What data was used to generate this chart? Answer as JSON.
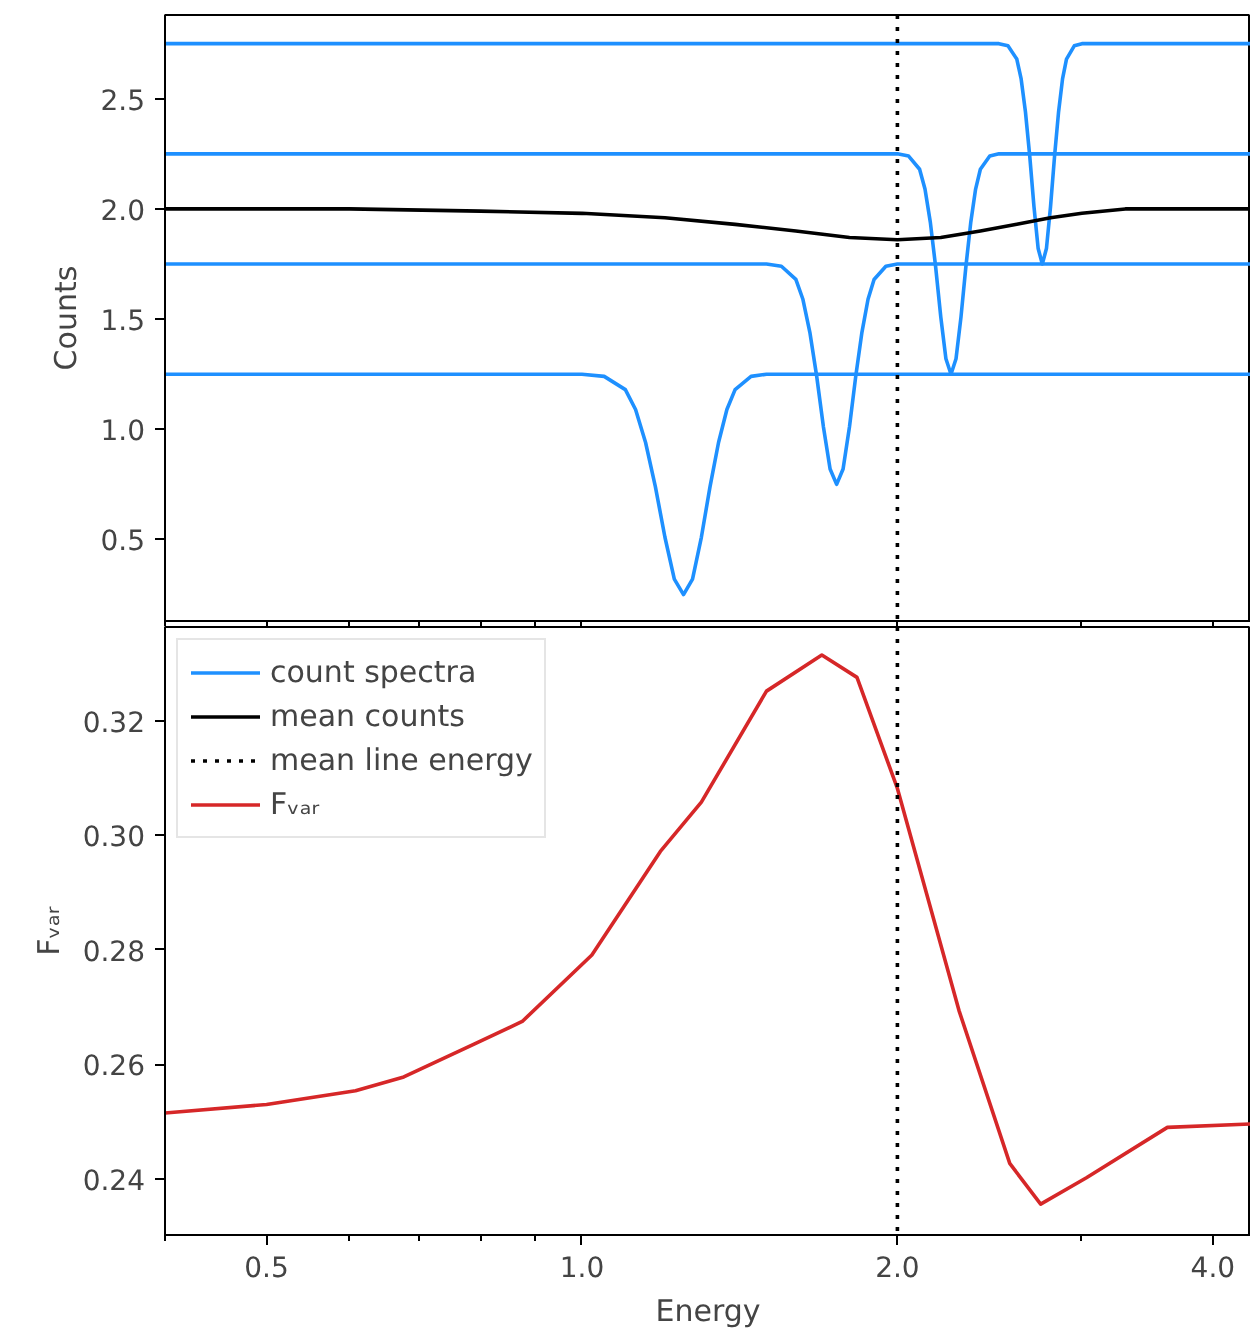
{
  "chart_data": [
    {
      "type": "line",
      "ylabel": "Counts",
      "log": "x",
      "tick_labels": "y",
      "legend": "bottom",
      "xlim": [
        0.4,
        4.35
      ],
      "ylim": [
        0.13,
        2.88
      ],
      "xticks": [
        {
          "value": 0.4,
          "label": null
        },
        {
          "value": 0.5,
          "label": null
        },
        {
          "value": 0.6,
          "label": null
        },
        {
          "value": 0.7,
          "label": null
        },
        {
          "value": 0.8,
          "label": null
        },
        {
          "value": 0.9,
          "label": null
        },
        {
          "value": 1,
          "label": null
        },
        {
          "value": 2,
          "label": null
        },
        {
          "value": 3,
          "label": null
        },
        {
          "value": 4,
          "label": null
        }
      ],
      "yticks": [
        0.5,
        {
          "value": 1,
          "label": "1.0"
        },
        1.5,
        {
          "value": 2,
          "label": "2.0"
        },
        2.5
      ],
      "ref_lines": [
        {
          "axis": "x",
          "value": 2.0,
          "label": "mean line energy",
          "color": "#000000",
          "line_style": "dotted"
        }
      ],
      "series": [
        {
          "name": "count spectra",
          "color": "#1e90ff",
          "x": [
            0.4,
            1.0,
            1.05,
            1.1,
            1.125,
            1.15,
            1.175,
            1.2,
            1.225,
            1.25,
            1.275,
            1.3,
            1.325,
            1.35,
            1.375,
            1.4,
            1.45,
            1.5,
            4.35
          ],
          "values": [
            1.25,
            1.25,
            1.24,
            1.18,
            1.09,
            0.94,
            0.74,
            0.51,
            0.32,
            0.25,
            0.32,
            0.51,
            0.74,
            0.94,
            1.09,
            1.18,
            1.24,
            1.25,
            1.25
          ]
        },
        {
          "color": "#1e90ff",
          "x": [
            0.4,
            1.5,
            1.55,
            1.6,
            1.625,
            1.65,
            1.675,
            1.7,
            1.725,
            1.75,
            1.775,
            1.8,
            1.825,
            1.85,
            1.875,
            1.9,
            1.95,
            2.0,
            4.35
          ],
          "values": [
            1.75,
            1.75,
            1.74,
            1.68,
            1.59,
            1.44,
            1.24,
            1.01,
            0.82,
            0.75,
            0.82,
            1.01,
            1.24,
            1.44,
            1.59,
            1.68,
            1.74,
            1.75,
            1.75
          ]
        },
        {
          "color": "#1e90ff",
          "x": [
            0.4,
            2.0,
            2.05,
            2.1,
            2.125,
            2.15,
            2.175,
            2.2,
            2.225,
            2.25,
            2.275,
            2.3,
            2.325,
            2.35,
            2.375,
            2.4,
            2.45,
            2.5,
            4.35
          ],
          "values": [
            2.25,
            2.25,
            2.24,
            2.18,
            2.09,
            1.94,
            1.74,
            1.51,
            1.32,
            1.25,
            1.32,
            1.51,
            1.74,
            1.94,
            2.09,
            2.18,
            2.24,
            2.25,
            2.25
          ]
        },
        {
          "color": "#1e90ff",
          "x": [
            0.4,
            2.5,
            2.55,
            2.6,
            2.625,
            2.65,
            2.675,
            2.7,
            2.725,
            2.75,
            2.775,
            2.8,
            2.825,
            2.85,
            2.875,
            2.9,
            2.95,
            3.0,
            4.35
          ],
          "values": [
            2.75,
            2.75,
            2.74,
            2.68,
            2.59,
            2.44,
            2.24,
            2.01,
            1.82,
            1.75,
            1.82,
            2.01,
            2.24,
            2.44,
            2.59,
            2.68,
            2.74,
            2.75,
            2.75
          ]
        },
        {
          "name": "mean counts",
          "color": "#000000",
          "x": [
            0.4,
            0.6,
            0.8,
            1.0,
            1.2,
            1.4,
            1.6,
            1.8,
            2.0,
            2.2,
            2.4,
            2.6,
            2.8,
            3.0,
            3.3,
            3.6,
            4.35
          ],
          "values": [
            2.0,
            2.0,
            1.99,
            1.98,
            1.96,
            1.93,
            1.9,
            1.87,
            1.86,
            1.87,
            1.9,
            1.93,
            1.96,
            1.98,
            2.0,
            2.0,
            2.0
          ]
        }
      ]
    },
    {
      "type": "line",
      "xlabel": "Energy",
      "ylabel": "Fᵥₐᵣ",
      "log": "x",
      "legend": "top left",
      "xlim": [
        0.4,
        4.35
      ],
      "ylim": [
        0.2302,
        0.3364
      ],
      "xticks": [
        {
          "value": 0.4,
          "label": null
        },
        0.5,
        {
          "value": 0.6,
          "label": null
        },
        {
          "value": 0.7,
          "label": null
        },
        {
          "value": 0.8,
          "label": null
        },
        {
          "value": 0.9,
          "label": null
        },
        {
          "value": 1,
          "label": "1.0"
        },
        {
          "value": 2,
          "label": "2.0"
        },
        {
          "value": 3,
          "label": null
        },
        {
          "value": 4,
          "label": "4.0"
        }
      ],
      "yticks": [
        0.24,
        0.26,
        0.28,
        {
          "value": 0.3,
          "label": "0.30"
        },
        0.32
      ],
      "ref_lines": [
        {
          "axis": "x",
          "value": 2.0,
          "color": "#000000",
          "line_style": "dotted"
        }
      ],
      "series": [
        {
          "name": "Fᵥₐᵣ",
          "color": "#d62728",
          "x": [
            0.4,
            0.5,
            0.608,
            0.676,
            0.788,
            0.877,
            1.022,
            1.188,
            1.3,
            1.5,
            1.694,
            1.83,
            2.0,
            2.29,
            2.56,
            2.74,
            3.03,
            3.62,
            4.35
          ],
          "values": [
            0.2515,
            0.253,
            0.2554,
            0.2578,
            0.2635,
            0.2675,
            0.2791,
            0.2972,
            0.3058,
            0.3252,
            0.3315,
            0.3276,
            0.3082,
            0.2694,
            0.2427,
            0.2356,
            0.2402,
            0.249,
            0.2496
          ]
        }
      ]
    }
  ]
}
